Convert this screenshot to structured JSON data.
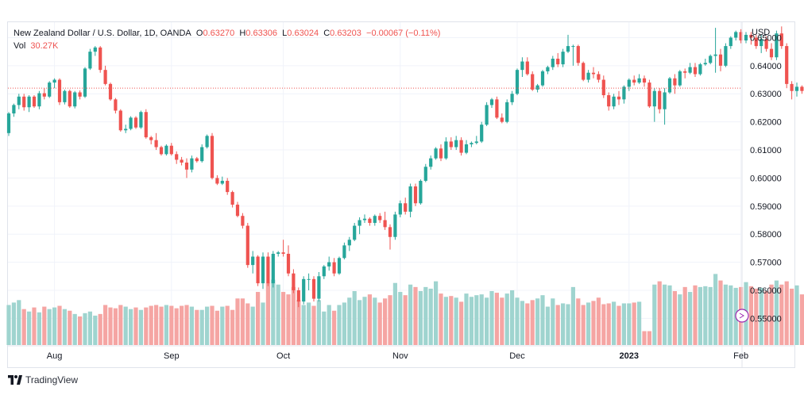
{
  "header": {
    "symbol": "New Zealand Dollar / U.S. Dollar, 1D, OANDA",
    "o_label": "O",
    "o_value": "0.63270",
    "h_label": "H",
    "h_value": "0.63306",
    "l_label": "L",
    "l_value": "0.63024",
    "c_label": "C",
    "c_value": "0.63203",
    "change": "−0.00067 (−0.11%)",
    "vol_label": "Vol",
    "vol_value": "30.27K"
  },
  "axis": {
    "currency": "USD"
  },
  "branding": {
    "name": "TradingView"
  },
  "colors": {
    "up": "#26a69a",
    "down": "#ef5350",
    "up_vol": "#9fd4cf",
    "down_vol": "#f5a5a3",
    "grid": "#f0f3fa",
    "price_line": "#ef5350"
  },
  "chart_data": {
    "type": "candlestick",
    "title": "New Zealand Dollar / U.S. Dollar, 1D, OANDA",
    "ylim": [
      0.5405,
      0.6555
    ],
    "y_ticks": [
      "0.65000",
      "0.64000",
      "0.63000",
      "0.62000",
      "0.61000",
      "0.60000",
      "0.59000",
      "0.58000",
      "0.57000",
      "0.56000",
      "0.55000"
    ],
    "x_ticks": [
      {
        "label": "Aug",
        "index": 9
      },
      {
        "label": "Sep",
        "index": 32
      },
      {
        "label": "Oct",
        "index": 54
      },
      {
        "label": "Nov",
        "index": 77
      },
      {
        "label": "Dec",
        "index": 100
      },
      {
        "label": "2023",
        "index": 122,
        "bold": true
      },
      {
        "label": "Feb",
        "index": 144
      }
    ],
    "last_price": 0.63203,
    "volume_scale_max": 100,
    "candles": [
      [
        0.616,
        0.6235,
        0.615,
        0.623,
        49
      ],
      [
        0.623,
        0.6265,
        0.6218,
        0.626,
        52
      ],
      [
        0.626,
        0.63,
        0.6245,
        0.629,
        55
      ],
      [
        0.629,
        0.63,
        0.624,
        0.6252,
        44
      ],
      [
        0.6252,
        0.6295,
        0.6235,
        0.629,
        41
      ],
      [
        0.629,
        0.6295,
        0.625,
        0.6255,
        46
      ],
      [
        0.6255,
        0.631,
        0.6245,
        0.6302,
        40
      ],
      [
        0.6302,
        0.632,
        0.628,
        0.629,
        47
      ],
      [
        0.629,
        0.6345,
        0.6285,
        0.634,
        44
      ],
      [
        0.634,
        0.6355,
        0.632,
        0.635,
        46
      ],
      [
        0.635,
        0.6355,
        0.626,
        0.627,
        48
      ],
      [
        0.627,
        0.6315,
        0.6262,
        0.631,
        44
      ],
      [
        0.631,
        0.6315,
        0.625,
        0.6255,
        42
      ],
      [
        0.6255,
        0.631,
        0.6248,
        0.6305,
        38
      ],
      [
        0.6305,
        0.6312,
        0.628,
        0.629,
        35
      ],
      [
        0.629,
        0.6395,
        0.6285,
        0.639,
        39
      ],
      [
        0.639,
        0.646,
        0.6385,
        0.645,
        41
      ],
      [
        0.645,
        0.647,
        0.6435,
        0.6465,
        36
      ],
      [
        0.6465,
        0.647,
        0.6375,
        0.6385,
        38
      ],
      [
        0.6385,
        0.64,
        0.633,
        0.6335,
        49
      ],
      [
        0.6335,
        0.634,
        0.6275,
        0.628,
        46
      ],
      [
        0.628,
        0.6285,
        0.623,
        0.624,
        45
      ],
      [
        0.624,
        0.6245,
        0.6165,
        0.617,
        49
      ],
      [
        0.617,
        0.619,
        0.616,
        0.6175,
        47
      ],
      [
        0.6175,
        0.622,
        0.617,
        0.6215,
        44
      ],
      [
        0.6215,
        0.622,
        0.6175,
        0.618,
        46
      ],
      [
        0.618,
        0.624,
        0.6175,
        0.6235,
        43
      ],
      [
        0.6235,
        0.6245,
        0.614,
        0.6145,
        46
      ],
      [
        0.6145,
        0.615,
        0.612,
        0.6135,
        48
      ],
      [
        0.6135,
        0.616,
        0.61,
        0.611,
        49
      ],
      [
        0.611,
        0.6115,
        0.608,
        0.6085,
        47
      ],
      [
        0.6085,
        0.612,
        0.608,
        0.6115,
        49
      ],
      [
        0.6115,
        0.6125,
        0.608,
        0.6085,
        48
      ],
      [
        0.6085,
        0.6095,
        0.605,
        0.6065,
        45
      ],
      [
        0.6065,
        0.6075,
        0.6045,
        0.6055,
        48
      ],
      [
        0.6055,
        0.607,
        0.6,
        0.603,
        49
      ],
      [
        0.603,
        0.608,
        0.602,
        0.607,
        47
      ],
      [
        0.607,
        0.6075,
        0.6055,
        0.606,
        43
      ],
      [
        0.606,
        0.612,
        0.6055,
        0.611,
        43
      ],
      [
        0.611,
        0.6155,
        0.6105,
        0.615,
        47
      ],
      [
        0.615,
        0.616,
        0.5995,
        0.6,
        48
      ],
      [
        0.6,
        0.601,
        0.5975,
        0.598,
        42
      ],
      [
        0.598,
        0.6005,
        0.5975,
        0.599,
        47
      ],
      [
        0.599,
        0.6,
        0.594,
        0.595,
        48
      ],
      [
        0.595,
        0.5955,
        0.5895,
        0.5905,
        43
      ],
      [
        0.5905,
        0.5915,
        0.586,
        0.5865,
        57
      ],
      [
        0.5865,
        0.5875,
        0.582,
        0.583,
        57
      ],
      [
        0.583,
        0.584,
        0.568,
        0.569,
        51
      ],
      [
        0.569,
        0.574,
        0.566,
        0.572,
        47
      ],
      [
        0.572,
        0.5725,
        0.5615,
        0.5625,
        65
      ],
      [
        0.5625,
        0.5735,
        0.5605,
        0.572,
        52
      ],
      [
        0.572,
        0.5735,
        0.5615,
        0.5625,
        76
      ],
      [
        0.5625,
        0.574,
        0.561,
        0.573,
        80
      ],
      [
        0.573,
        0.574,
        0.572,
        0.5735,
        74
      ],
      [
        0.5735,
        0.578,
        0.572,
        0.573,
        65
      ],
      [
        0.573,
        0.576,
        0.565,
        0.566,
        62
      ],
      [
        0.566,
        0.5675,
        0.559,
        0.56,
        71
      ],
      [
        0.56,
        0.561,
        0.554,
        0.556,
        55
      ],
      [
        0.556,
        0.565,
        0.555,
        0.564,
        49
      ],
      [
        0.564,
        0.566,
        0.56,
        0.564,
        52
      ],
      [
        0.564,
        0.565,
        0.556,
        0.557,
        48
      ],
      [
        0.557,
        0.5665,
        0.556,
        0.565,
        55
      ],
      [
        0.565,
        0.569,
        0.564,
        0.5685,
        41
      ],
      [
        0.5685,
        0.572,
        0.567,
        0.57,
        49
      ],
      [
        0.57,
        0.5715,
        0.565,
        0.566,
        42
      ],
      [
        0.566,
        0.572,
        0.5655,
        0.5715,
        49
      ],
      [
        0.5715,
        0.577,
        0.571,
        0.576,
        52
      ],
      [
        0.576,
        0.579,
        0.574,
        0.578,
        58
      ],
      [
        0.578,
        0.584,
        0.5775,
        0.583,
        66
      ],
      [
        0.583,
        0.586,
        0.58,
        0.585,
        55
      ],
      [
        0.585,
        0.587,
        0.584,
        0.5855,
        59
      ],
      [
        0.5855,
        0.586,
        0.583,
        0.584,
        62
      ],
      [
        0.584,
        0.587,
        0.583,
        0.5865,
        58
      ],
      [
        0.5865,
        0.5875,
        0.584,
        0.585,
        52
      ],
      [
        0.585,
        0.588,
        0.5815,
        0.5825,
        57
      ],
      [
        0.5825,
        0.5835,
        0.5745,
        0.579,
        61
      ],
      [
        0.579,
        0.588,
        0.578,
        0.587,
        76
      ],
      [
        0.587,
        0.592,
        0.586,
        0.591,
        65
      ],
      [
        0.591,
        0.593,
        0.587,
        0.588,
        61
      ],
      [
        0.588,
        0.598,
        0.586,
        0.597,
        74
      ],
      [
        0.597,
        0.598,
        0.59,
        0.591,
        71
      ],
      [
        0.591,
        0.5995,
        0.5905,
        0.599,
        66
      ],
      [
        0.599,
        0.605,
        0.5985,
        0.604,
        71
      ],
      [
        0.604,
        0.608,
        0.603,
        0.607,
        69
      ],
      [
        0.607,
        0.611,
        0.6065,
        0.6105,
        78
      ],
      [
        0.6105,
        0.612,
        0.606,
        0.607,
        63
      ],
      [
        0.607,
        0.6145,
        0.6065,
        0.613,
        59
      ],
      [
        0.613,
        0.6145,
        0.61,
        0.611,
        60
      ],
      [
        0.611,
        0.615,
        0.61,
        0.6135,
        58
      ],
      [
        0.6135,
        0.6145,
        0.608,
        0.609,
        53
      ],
      [
        0.609,
        0.6135,
        0.6085,
        0.612,
        63
      ],
      [
        0.612,
        0.613,
        0.611,
        0.6125,
        59
      ],
      [
        0.6125,
        0.615,
        0.612,
        0.613,
        61
      ],
      [
        0.613,
        0.62,
        0.6125,
        0.619,
        62
      ],
      [
        0.619,
        0.627,
        0.6185,
        0.626,
        58
      ],
      [
        0.626,
        0.6285,
        0.625,
        0.628,
        66
      ],
      [
        0.628,
        0.629,
        0.621,
        0.6215,
        64
      ],
      [
        0.6215,
        0.623,
        0.6195,
        0.62,
        58
      ],
      [
        0.62,
        0.628,
        0.6195,
        0.627,
        63
      ],
      [
        0.627,
        0.631,
        0.626,
        0.63,
        67
      ],
      [
        0.63,
        0.639,
        0.6295,
        0.6385,
        58
      ],
      [
        0.6385,
        0.643,
        0.636,
        0.6415,
        54
      ],
      [
        0.6415,
        0.643,
        0.6365,
        0.637,
        51
      ],
      [
        0.637,
        0.638,
        0.631,
        0.6315,
        55
      ],
      [
        0.6315,
        0.6335,
        0.6305,
        0.633,
        57
      ],
      [
        0.633,
        0.6385,
        0.6325,
        0.638,
        61
      ],
      [
        0.638,
        0.64,
        0.637,
        0.6395,
        47
      ],
      [
        0.6395,
        0.6435,
        0.6385,
        0.6425,
        57
      ],
      [
        0.6425,
        0.6445,
        0.6395,
        0.6405,
        49
      ],
      [
        0.6405,
        0.646,
        0.6395,
        0.645,
        51
      ],
      [
        0.645,
        0.651,
        0.6445,
        0.647,
        50
      ],
      [
        0.647,
        0.6475,
        0.64,
        0.647,
        71
      ],
      [
        0.647,
        0.6475,
        0.64,
        0.641,
        57
      ],
      [
        0.641,
        0.6415,
        0.6345,
        0.635,
        49
      ],
      [
        0.635,
        0.6385,
        0.634,
        0.6375,
        52
      ],
      [
        0.6375,
        0.6395,
        0.6355,
        0.637,
        54
      ],
      [
        0.637,
        0.638,
        0.634,
        0.635,
        58
      ],
      [
        0.635,
        0.6365,
        0.6285,
        0.6295,
        50
      ],
      [
        0.6295,
        0.6305,
        0.624,
        0.6255,
        51
      ],
      [
        0.6255,
        0.63,
        0.6245,
        0.629,
        53
      ],
      [
        0.629,
        0.631,
        0.626,
        0.628,
        48
      ],
      [
        0.628,
        0.633,
        0.6265,
        0.6325,
        51
      ],
      [
        0.6325,
        0.6355,
        0.631,
        0.635,
        51
      ],
      [
        0.635,
        0.6365,
        0.633,
        0.634,
        52
      ],
      [
        0.634,
        0.637,
        0.6335,
        0.6355,
        53
      ],
      [
        0.6355,
        0.6365,
        0.6325,
        0.634,
        17
      ],
      [
        0.634,
        0.635,
        0.625,
        0.6255,
        17
      ],
      [
        0.6255,
        0.632,
        0.62,
        0.631,
        74
      ],
      [
        0.631,
        0.632,
        0.623,
        0.6245,
        78
      ],
      [
        0.6245,
        0.632,
        0.619,
        0.6305,
        74
      ],
      [
        0.6305,
        0.636,
        0.63,
        0.6355,
        73
      ],
      [
        0.6355,
        0.637,
        0.63,
        0.633,
        66
      ],
      [
        0.633,
        0.6385,
        0.6325,
        0.638,
        62
      ],
      [
        0.638,
        0.639,
        0.6355,
        0.6375,
        71
      ],
      [
        0.6375,
        0.641,
        0.637,
        0.6395,
        65
      ],
      [
        0.6395,
        0.641,
        0.636,
        0.637,
        73
      ],
      [
        0.637,
        0.641,
        0.6365,
        0.6405,
        71
      ],
      [
        0.6405,
        0.6425,
        0.64,
        0.641,
        72
      ],
      [
        0.641,
        0.644,
        0.6405,
        0.6435,
        71
      ],
      [
        0.6435,
        0.6535,
        0.6375,
        0.644,
        87
      ],
      [
        0.644,
        0.646,
        0.638,
        0.64,
        79
      ],
      [
        0.64,
        0.648,
        0.6395,
        0.647,
        74
      ],
      [
        0.647,
        0.6505,
        0.646,
        0.65,
        73
      ],
      [
        0.65,
        0.6525,
        0.649,
        0.652,
        70
      ],
      [
        0.652,
        0.653,
        0.648,
        0.649,
        71
      ],
      [
        0.649,
        0.652,
        0.648,
        0.651,
        77
      ],
      [
        0.651,
        0.652,
        0.6475,
        0.65,
        72
      ],
      [
        0.65,
        0.651,
        0.646,
        0.647,
        69
      ],
      [
        0.647,
        0.651,
        0.6445,
        0.6495,
        70
      ],
      [
        0.6495,
        0.6505,
        0.645,
        0.646,
        66
      ],
      [
        0.646,
        0.648,
        0.642,
        0.643,
        74
      ],
      [
        0.643,
        0.6525,
        0.642,
        0.6515,
        79
      ],
      [
        0.6515,
        0.654,
        0.646,
        0.647,
        74
      ],
      [
        0.647,
        0.648,
        0.632,
        0.6335,
        78
      ],
      [
        0.6335,
        0.6345,
        0.628,
        0.631,
        69
      ],
      [
        0.631,
        0.634,
        0.629,
        0.6325,
        73
      ],
      [
        0.6325,
        0.633,
        0.63,
        0.631,
        62
      ],
      [
        0.631,
        0.639,
        0.63,
        0.633,
        73
      ],
      [
        0.6327,
        0.6331,
        0.6302,
        0.632,
        36
      ]
    ]
  }
}
